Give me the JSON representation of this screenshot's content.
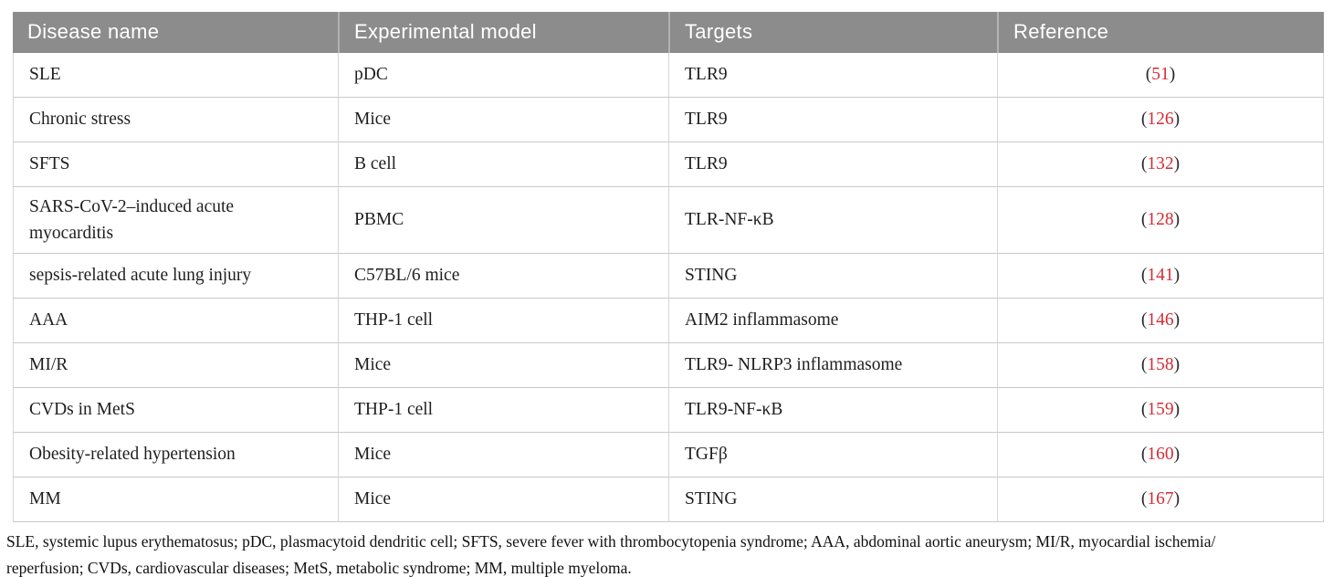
{
  "colors": {
    "header_bg": "#8c8c8c",
    "header_text": "#ffffff",
    "body_text": "#1f1f1f",
    "row_border": "#c9c9c9",
    "reference_red": "#d22d36"
  },
  "table": {
    "headers": {
      "disease": "Disease name",
      "model": "Experimental model",
      "targets": "Targets",
      "reference": "Reference"
    },
    "paren_open": "(",
    "paren_close": ")",
    "rows": [
      {
        "disease": "SLE",
        "model": "pDC",
        "target": "TLR9",
        "ref": "51"
      },
      {
        "disease": "Chronic stress",
        "model": "Mice",
        "target": "TLR9",
        "ref": "126"
      },
      {
        "disease": "SFTS",
        "model": "B cell",
        "target": "TLR9",
        "ref": "132"
      },
      {
        "disease": "SARS-CoV-2–induced acute myocarditis",
        "model": "PBMC",
        "target": "TLR-NF-κB",
        "ref": "128"
      },
      {
        "disease": "sepsis-related acute lung injury",
        "model": "C57BL/6 mice",
        "target": "STING",
        "ref": "141"
      },
      {
        "disease": "AAA",
        "model": "THP-1 cell",
        "target": "AIM2 inflammasome",
        "ref": "146"
      },
      {
        "disease": "MI/R",
        "model": "Mice",
        "target": "TLR9- NLRP3 inflammasome",
        "ref": "158"
      },
      {
        "disease": "CVDs in MetS",
        "model": "THP-1 cell",
        "target": "TLR9-NF-κB",
        "ref": "159"
      },
      {
        "disease": "Obesity-related hypertension",
        "model": "Mice",
        "target": "TGFβ",
        "ref": "160"
      },
      {
        "disease": "MM",
        "model": "Mice",
        "target": "STING",
        "ref": "167"
      }
    ]
  },
  "footnote": {
    "lines": [
      "SLE, systemic lupus erythematosus; pDC, plasmacytoid dendritic cell; SFTS, severe fever with thrombocytopenia syndrome; AAA, abdominal aortic aneurysm; MI/R, myocardial ischemia/",
      "reperfusion; CVDs, cardiovascular diseases; MetS, metabolic syndrome; MM, multiple myeloma."
    ]
  }
}
